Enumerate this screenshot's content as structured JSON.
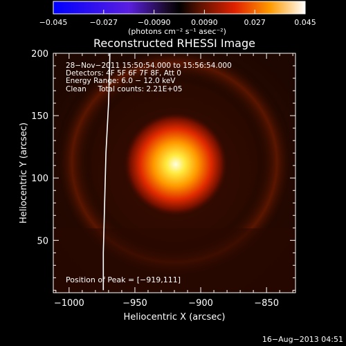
{
  "colorbar": {
    "ticks": [
      "−0.045",
      "−0.027",
      "−0.0090",
      "0.0090",
      "0.027",
      "0.045"
    ],
    "tick_values": [
      -0.045,
      -0.027,
      -0.009,
      0.009,
      0.027,
      0.045
    ],
    "unit_label": "(photons cm⁻² s⁻¹ asec⁻²)",
    "range": [
      -0.045,
      0.045
    ]
  },
  "chart_data": {
    "type": "heatmap",
    "title": "Reconstructed RHESSI Image",
    "xlabel": "Heliocentric X (arcsec)",
    "ylabel": "Heliocentric Y (arcsec)",
    "xlim": [
      -1012,
      -828
    ],
    "ylim": [
      8,
      200
    ],
    "x_ticks": [
      -1000,
      -950,
      -900,
      -850
    ],
    "y_ticks": [
      50,
      100,
      150,
      200
    ],
    "x_tick_labels": [
      "−1000",
      "−950",
      "−900",
      "−850"
    ],
    "y_tick_labels": [
      "50",
      "100",
      "150",
      "200"
    ],
    "peak": {
      "x": -919,
      "y": 111
    },
    "limb_curve": [
      [
        -969,
        200
      ],
      [
        -970,
        160
      ],
      [
        -972,
        120
      ],
      [
        -973,
        80
      ],
      [
        -974,
        40
      ],
      [
        -974,
        10
      ]
    ],
    "annotations": [
      "28−Nov−2011 15:50:54.000 to 15:56:54.000",
      "Detectors: 4F 5F 6F 7F 8F, Att 0",
      "Energy Range: 6.0 − 12.0 keV",
      "Clean     Total counts: 2.21E+05"
    ],
    "peak_label": "Position of Peak = [−919,111]"
  },
  "footer": {
    "timestamp": "16−Aug−2013 04:51"
  },
  "colors": {
    "background": "#000000",
    "axes": "#ffffff"
  }
}
